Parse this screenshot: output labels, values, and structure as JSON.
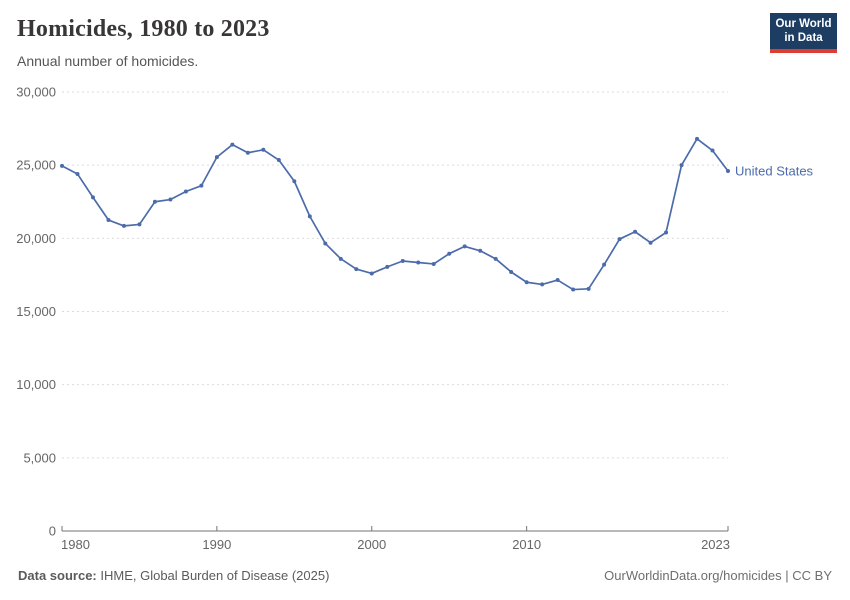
{
  "header": {
    "title": "Homicides, 1980 to 2023",
    "subtitle": "Annual number of homicides.",
    "logo": {
      "line1": "Our World",
      "line2": "in Data",
      "bg_color": "#1d3d63",
      "accent_color": "#dc3e32"
    }
  },
  "chart_data": {
    "type": "line",
    "title": "Homicides, 1980 to 2023",
    "subtitle": "Annual number of homicides.",
    "xlabel": "",
    "ylabel": "",
    "xlim": [
      1980,
      2023
    ],
    "ylim": [
      0,
      30000
    ],
    "x_ticks": [
      1980,
      1990,
      2000,
      2010,
      2023
    ],
    "y_ticks": [
      0,
      5000,
      10000,
      15000,
      20000,
      25000,
      30000
    ],
    "grid": "horizontal-dashed",
    "legend_position": "end-of-line",
    "x": [
      1980,
      1981,
      1982,
      1983,
      1984,
      1985,
      1986,
      1987,
      1988,
      1989,
      1990,
      1991,
      1992,
      1993,
      1994,
      1995,
      1996,
      1997,
      1998,
      1999,
      2000,
      2001,
      2002,
      2003,
      2004,
      2005,
      2006,
      2007,
      2008,
      2009,
      2010,
      2011,
      2012,
      2013,
      2014,
      2015,
      2016,
      2017,
      2018,
      2019,
      2020,
      2021,
      2022,
      2023
    ],
    "series": [
      {
        "name": "United States",
        "color": "#4c6bab",
        "values": [
          24950,
          24400,
          22800,
          21250,
          20850,
          20950,
          22500,
          22650,
          23200,
          23600,
          25550,
          26400,
          25850,
          26050,
          25350,
          23900,
          21500,
          19650,
          18600,
          17900,
          17600,
          18050,
          18450,
          18350,
          18250,
          18950,
          19450,
          19150,
          18600,
          17700,
          17000,
          16850,
          17150,
          16500,
          16550,
          18200,
          19950,
          20450,
          19700,
          20400,
          25000,
          26800,
          26000,
          24600
        ]
      }
    ],
    "colors": {
      "grid": "#dcdcdc",
      "axis": "#737373",
      "tick_label": "#666666"
    }
  },
  "footer": {
    "source_label": "Data source:",
    "source_text": " IHME, Global Burden of Disease (2025)",
    "attribution": "OurWorldinData.org/homicides | CC BY"
  }
}
